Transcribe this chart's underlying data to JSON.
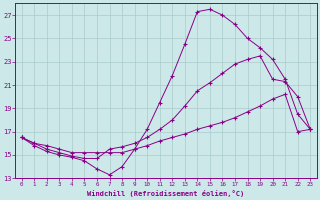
{
  "xlabel": "Windchill (Refroidissement éolien,°C)",
  "background_color": "#cde8e8",
  "grid_color": "#aacccc",
  "line_color": "#880088",
  "ylim": [
    13,
    28
  ],
  "xlim": [
    -0.5,
    23.5
  ],
  "yticks": [
    13,
    15,
    17,
    19,
    21,
    23,
    25,
    27
  ],
  "xticks": [
    0,
    1,
    2,
    3,
    4,
    5,
    6,
    7,
    8,
    9,
    10,
    11,
    12,
    13,
    14,
    15,
    16,
    17,
    18,
    19,
    20,
    21,
    22,
    23
  ],
  "line1_x": [
    0,
    1,
    2,
    3,
    4,
    5,
    6,
    7,
    8,
    9,
    10,
    11,
    12,
    13,
    14,
    15,
    16,
    17,
    18,
    19,
    20,
    21,
    22,
    23
  ],
  "line1_y": [
    16.5,
    16.0,
    15.5,
    15.2,
    14.9,
    14.7,
    14.7,
    15.5,
    15.7,
    16.0,
    16.5,
    17.2,
    18.0,
    19.2,
    20.5,
    21.2,
    22.0,
    22.8,
    23.2,
    23.5,
    21.5,
    21.3,
    20.0,
    17.2
  ],
  "line2_x": [
    0,
    1,
    2,
    3,
    4,
    5,
    6,
    7,
    8,
    9,
    10,
    11,
    12,
    13,
    14,
    15,
    16,
    17,
    18,
    19,
    20,
    21,
    22,
    23
  ],
  "line2_y": [
    16.5,
    15.8,
    15.3,
    15.0,
    14.8,
    14.5,
    13.8,
    13.3,
    14.0,
    15.5,
    17.2,
    19.5,
    21.8,
    24.5,
    27.3,
    27.5,
    27.0,
    26.2,
    25.0,
    24.2,
    23.2,
    21.5,
    18.5,
    17.2
  ],
  "line3_x": [
    0,
    1,
    2,
    3,
    4,
    5,
    6,
    7,
    8,
    9,
    10,
    11,
    12,
    13,
    14,
    15,
    16,
    17,
    18,
    19,
    20,
    21,
    22,
    23
  ],
  "line3_y": [
    16.5,
    16.0,
    15.8,
    15.5,
    15.2,
    15.2,
    15.2,
    15.2,
    15.2,
    15.5,
    15.8,
    16.2,
    16.5,
    16.8,
    17.2,
    17.5,
    17.8,
    18.2,
    18.7,
    19.2,
    19.8,
    20.2,
    17.0,
    17.2
  ]
}
